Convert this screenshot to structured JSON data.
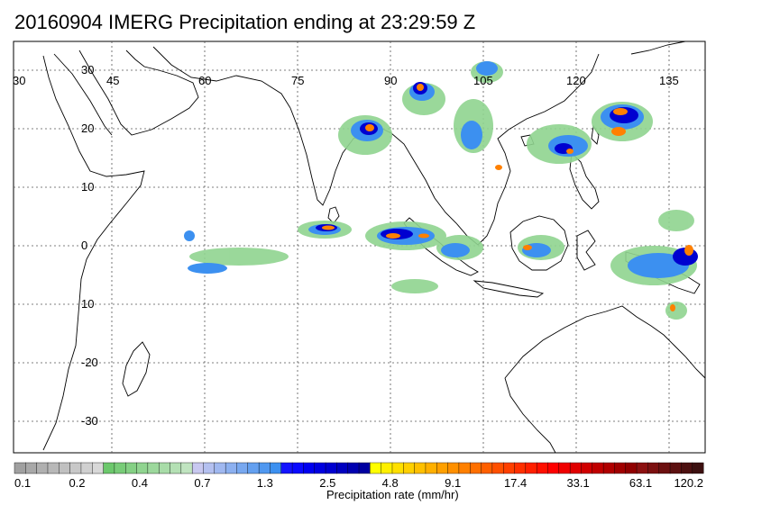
{
  "title": "20160904 IMERG Precipitation ending at 23:29:59 Z",
  "map": {
    "lon_labels": [
      "30",
      "45",
      "60",
      "75",
      "90",
      "105",
      "120",
      "135"
    ],
    "lat_labels": [
      "30",
      "20",
      "10",
      "0",
      "10",
      "-20",
      "-30"
    ]
  },
  "colorbar": {
    "colors": [
      "#a0a0a0",
      "#a8a8a8",
      "#b0b0b0",
      "#b8b8b8",
      "#c0c0c0",
      "#c8c8c8",
      "#d0d0d0",
      "#d8d8d8",
      "#6cc86c",
      "#78cc78",
      "#84d084",
      "#90d490",
      "#9cd89c",
      "#a8dca8",
      "#b4e0b4",
      "#c0e4c0",
      "#c8c8f0",
      "#b4c0f0",
      "#a0b8f0",
      "#8cb0f0",
      "#78a8f0",
      "#64a0f0",
      "#5098f0",
      "#3c90f0",
      "#1414ff",
      "#0a0aff",
      "#0000f0",
      "#0000e0",
      "#0000d0",
      "#0000c0",
      "#0000b0",
      "#0000a0",
      "#ffff00",
      "#fff000",
      "#ffe000",
      "#ffd000",
      "#ffc000",
      "#ffb000",
      "#ffa000",
      "#ff9000",
      "#ff8000",
      "#ff7000",
      "#ff6000",
      "#ff5000",
      "#ff4000",
      "#ff3000",
      "#ff2000",
      "#ff1000",
      "#ff0000",
      "#f00000",
      "#e00000",
      "#d00000",
      "#c00000",
      "#b00000",
      "#a00000",
      "#900000",
      "#8c1010",
      "#7c1010",
      "#6c1010",
      "#5c1010",
      "#4c1010",
      "#3c1010"
    ],
    "tick_labels": [
      "0.1",
      "0.2",
      "0.4",
      "0.7",
      "1.3",
      "2.5",
      "4.8",
      "9.1",
      "17.4",
      "33.1",
      "63.1",
      "120.2"
    ],
    "label": "Precipitation rate (mm/hr)"
  }
}
